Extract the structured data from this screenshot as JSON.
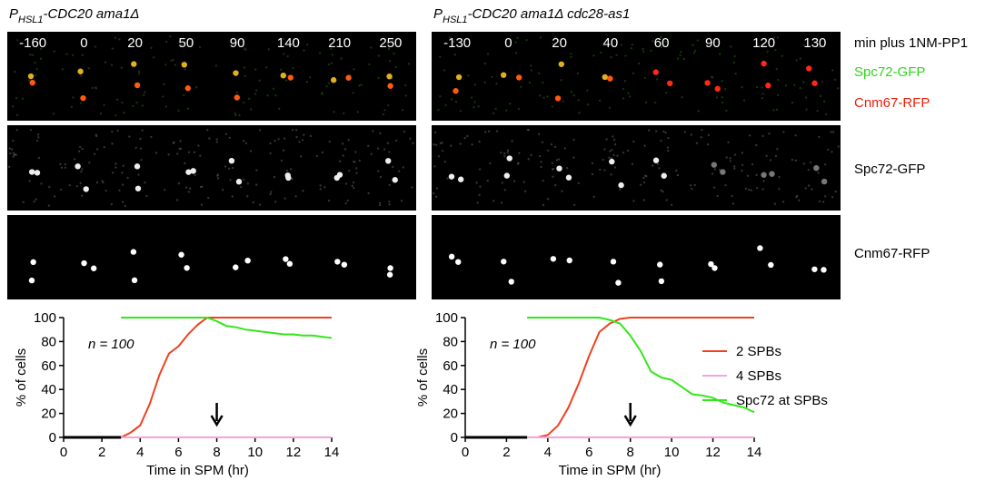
{
  "panels": [
    {
      "title_p": "P",
      "title_sub": "HSL1",
      "title_rest": "-CDC20 ama1Δ",
      "timepoints": [
        -160,
        0,
        20,
        50,
        90,
        140,
        210,
        250
      ]
    },
    {
      "title_p": "P",
      "title_sub": "HSL1",
      "title_rest": "-CDC20 ama1Δ cdc28-as1",
      "timepoints": [
        -130,
        0,
        20,
        40,
        60,
        90,
        120,
        130
      ]
    }
  ],
  "row_labels": {
    "time": "min plus 1NM-PP1",
    "merge_green": "Spc72-GFP",
    "merge_red": "Cnm67-RFP",
    "green": "Spc72-GFP",
    "red": "Cnm67-RFP"
  },
  "chart_data": [
    {
      "type": "line",
      "ylabel": "% of cells",
      "xlabel": "Time in SPM (hr)",
      "annotation": "n = 100",
      "arrow_x": 8,
      "xlim": [
        0,
        14
      ],
      "xticks": [
        0,
        2,
        4,
        6,
        8,
        10,
        12,
        14
      ],
      "ylim": [
        0,
        100
      ],
      "yticks": [
        0,
        20,
        40,
        60,
        80,
        100
      ],
      "x": [
        3,
        3.5,
        4,
        4.5,
        5,
        5.5,
        6,
        6.5,
        7,
        7.5,
        8,
        8.5,
        9,
        9.5,
        10,
        10.5,
        11,
        11.5,
        12,
        12.5,
        13,
        13.5,
        14
      ],
      "series": [
        {
          "name": "2 SPBs",
          "color": "#f0411e",
          "values": [
            0,
            4,
            10,
            28,
            52,
            70,
            76,
            86,
            94,
            100,
            100,
            100,
            100,
            100,
            100,
            100,
            100,
            100,
            100,
            100,
            100,
            100,
            100
          ]
        },
        {
          "name": "4 SPBs",
          "color": "#f5a3d9",
          "values": [
            0,
            0,
            0,
            0,
            0,
            0,
            0,
            0,
            0,
            0,
            0,
            0,
            0,
            0,
            0,
            0,
            0,
            0,
            0,
            0,
            0,
            0,
            0
          ]
        },
        {
          "name": "Spc72 at SPBs",
          "color": "#33e619",
          "values": [
            100,
            100,
            100,
            100,
            100,
            100,
            100,
            100,
            100,
            100,
            97,
            93,
            92,
            90,
            89,
            88,
            87,
            86,
            86,
            85,
            85,
            84,
            83
          ]
        }
      ]
    },
    {
      "type": "line",
      "ylabel": "% of cells",
      "xlabel": "Time in SPM (hr)",
      "annotation": "n = 100",
      "arrow_x": 8,
      "xlim": [
        0,
        14
      ],
      "xticks": [
        0,
        2,
        4,
        6,
        8,
        10,
        12,
        14
      ],
      "ylim": [
        0,
        100
      ],
      "yticks": [
        0,
        20,
        40,
        60,
        80,
        100
      ],
      "x": [
        3,
        3.5,
        4,
        4.5,
        5,
        5.5,
        6,
        6.5,
        7,
        7.5,
        8,
        8.5,
        9,
        9.5,
        10,
        10.5,
        11,
        11.5,
        12,
        12.5,
        13,
        13.5,
        14
      ],
      "series": [
        {
          "name": "2 SPBs",
          "color": "#f0411e",
          "values": [
            0,
            0,
            2,
            10,
            25,
            45,
            68,
            88,
            95,
            99,
            100,
            100,
            100,
            100,
            100,
            100,
            100,
            100,
            100,
            100,
            100,
            100,
            100
          ]
        },
        {
          "name": "4 SPBs",
          "color": "#f5a3d9",
          "values": [
            0,
            0,
            0,
            0,
            0,
            0,
            0,
            0,
            0,
            0,
            0,
            0,
            0,
            0,
            0,
            0,
            0,
            0,
            0,
            0,
            0,
            0,
            0
          ]
        },
        {
          "name": "Spc72 at SPBs",
          "color": "#33e619",
          "values": [
            100,
            100,
            100,
            100,
            100,
            100,
            100,
            100,
            98,
            95,
            85,
            72,
            55,
            50,
            48,
            42,
            36,
            35,
            33,
            29,
            27,
            25,
            21
          ]
        }
      ]
    }
  ]
}
